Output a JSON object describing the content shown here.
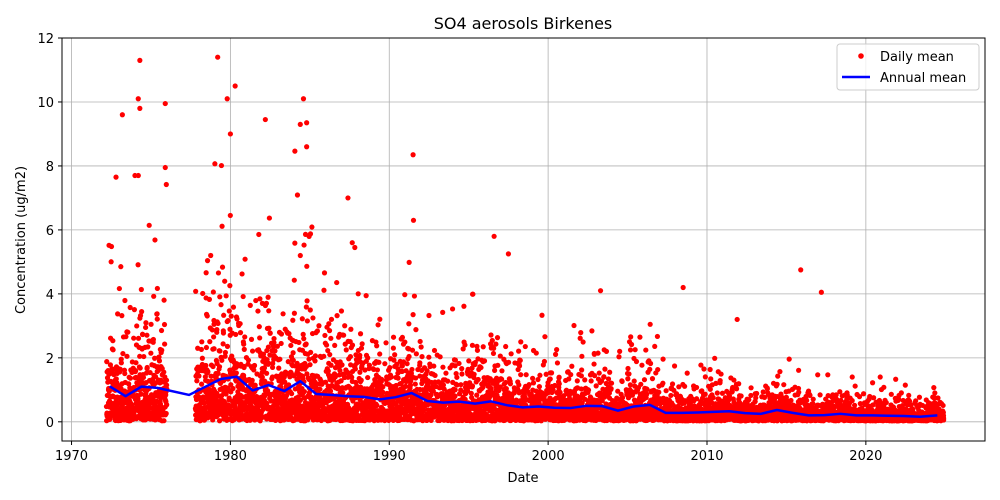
{
  "chart_data": {
    "type": "scatter",
    "title": "SO4 aerosols Birkenes",
    "xlabel": "Date",
    "ylabel": "Concentration (ug/m2)",
    "xlim": [
      1969.4,
      2027.5
    ],
    "ylim": [
      -0.6,
      12
    ],
    "xticks": [
      1970,
      1980,
      1990,
      2000,
      2010,
      2020
    ],
    "yticks": [
      0,
      2,
      4,
      6,
      8,
      10,
      12
    ],
    "grid": true,
    "legend_position": "top-right",
    "colors": {
      "daily": "#ff0000",
      "annual": "#0000ff"
    },
    "series": [
      {
        "name": "Daily mean",
        "style": "points",
        "note_range": [
          [
            1972.2,
            1976.0
          ],
          [
            1977.8,
            2024.9
          ]
        ],
        "outliers": [
          [
            1974.3,
            11.3
          ],
          [
            1979.2,
            11.4
          ],
          [
            1980.3,
            10.5
          ],
          [
            1974.2,
            10.1
          ],
          [
            1974.3,
            9.8
          ],
          [
            1973.2,
            9.6
          ],
          [
            1975.9,
            9.95
          ],
          [
            1979.8,
            10.1
          ],
          [
            1980.0,
            9.0
          ],
          [
            1982.2,
            9.45
          ],
          [
            1984.4,
            9.3
          ],
          [
            1984.8,
            9.35
          ],
          [
            1984.6,
            10.1
          ],
          [
            1984.8,
            8.6
          ],
          [
            1991.5,
            8.35
          ],
          [
            1975.9,
            7.95
          ],
          [
            1972.8,
            7.65
          ],
          [
            1987.4,
            7.0
          ],
          [
            1996.6,
            5.8
          ],
          [
            1997.5,
            5.25
          ],
          [
            2003.3,
            4.1
          ],
          [
            2008.5,
            4.2
          ],
          [
            2015.9,
            4.75
          ],
          [
            2017.2,
            4.05
          ],
          [
            2011.9,
            3.2
          ]
        ]
      },
      {
        "name": "Annual mean",
        "style": "line",
        "x": [
          1972.4,
          1973.4,
          1974.4,
          1975.4,
          1977.4,
          1979.4,
          1980.4,
          1981.4,
          1982.4,
          1983.4,
          1984.4,
          1985.4,
          1986.4,
          1987.4,
          1988.4,
          1989.4,
          1990.4,
          1991.4,
          1992.4,
          1993.4,
          1994.4,
          1995.4,
          1996.4,
          1997.4,
          1998.4,
          1999.4,
          2000.4,
          2001.4,
          2002.4,
          2003.4,
          2004.4,
          2005.4,
          2006.4,
          2007.4,
          2008.4,
          2009.4,
          2010.4,
          2011.4,
          2012.4,
          2013.4,
          2014.4,
          2015.4,
          2016.4,
          2017.4,
          2018.4,
          2019.4,
          2020.4,
          2021.4,
          2022.4,
          2023.4,
          2024.5
        ],
        "y": [
          1.11,
          0.8,
          1.1,
          1.06,
          0.84,
          1.34,
          1.41,
          0.98,
          1.15,
          0.96,
          1.27,
          0.87,
          0.84,
          0.8,
          0.78,
          0.7,
          0.77,
          0.9,
          0.65,
          0.6,
          0.63,
          0.57,
          0.64,
          0.52,
          0.45,
          0.48,
          0.44,
          0.43,
          0.5,
          0.49,
          0.35,
          0.48,
          0.53,
          0.28,
          0.28,
          0.29,
          0.31,
          0.33,
          0.27,
          0.25,
          0.37,
          0.28,
          0.2,
          0.21,
          0.25,
          0.2,
          0.2,
          0.19,
          0.18,
          0.16,
          0.2
        ]
      }
    ]
  }
}
